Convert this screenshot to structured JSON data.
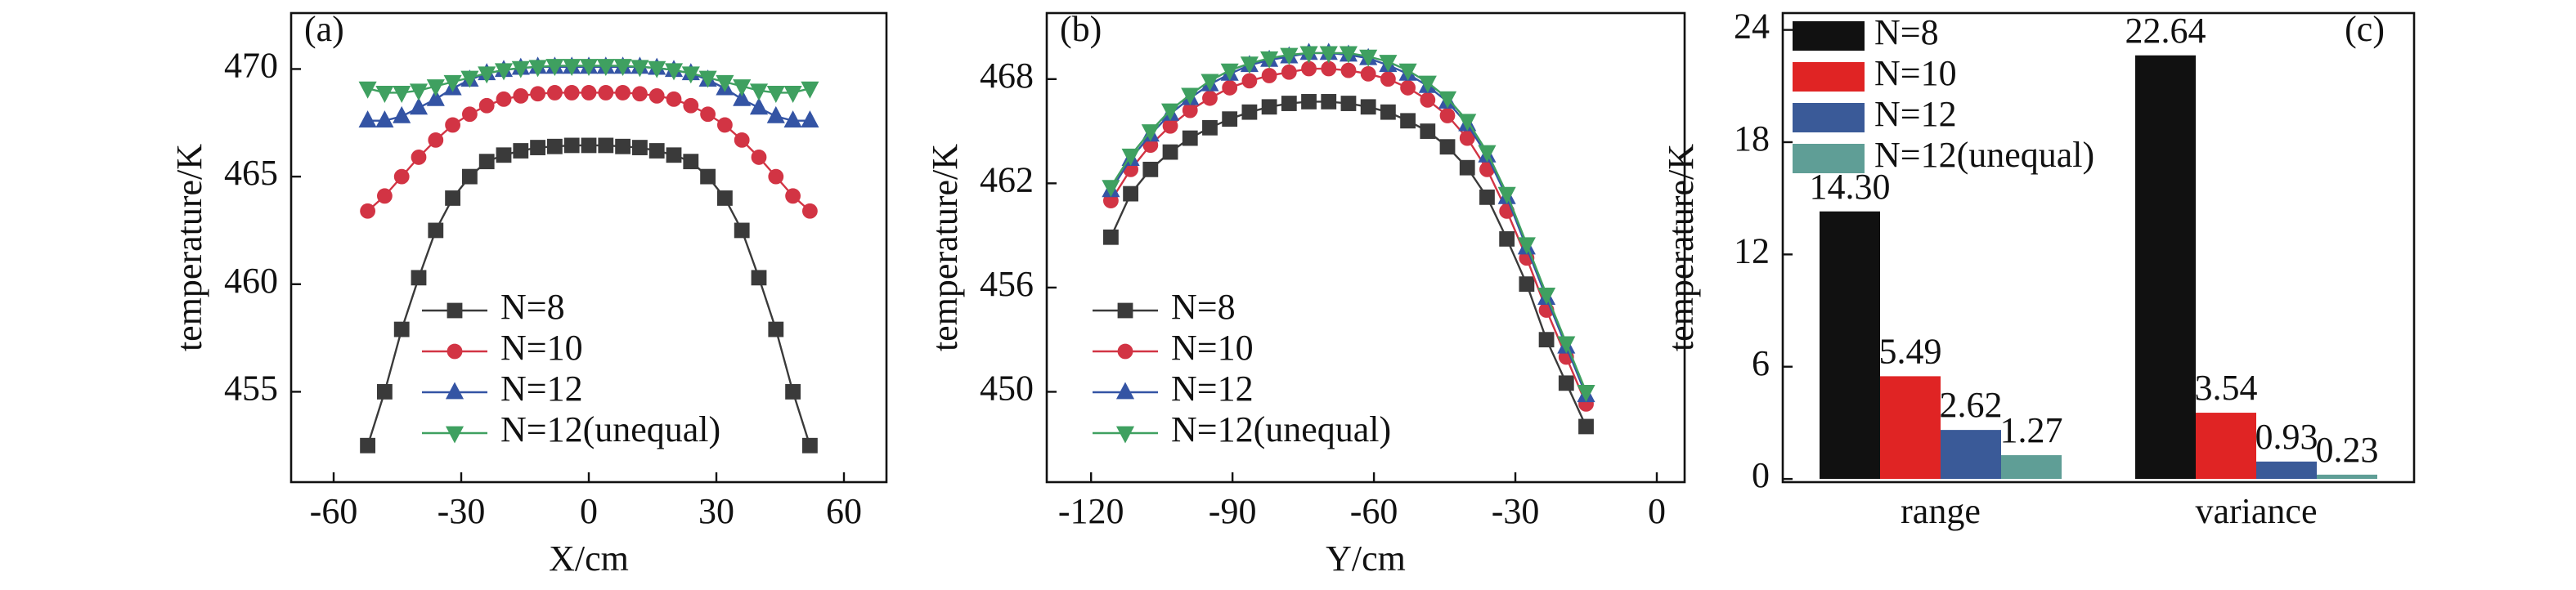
{
  "chart_data": [
    {
      "type": "line",
      "panel_label": "(a)",
      "x_label": "X/cm",
      "y_label": "temperature/K",
      "legend": "lower center",
      "x": [
        -52,
        -48,
        -44,
        -40,
        -36,
        -32,
        -28,
        -24,
        -20,
        -16,
        -12,
        -8,
        -4,
        0,
        4,
        8,
        12,
        16,
        20,
        24,
        28,
        32,
        36,
        40,
        44,
        48,
        52
      ],
      "xlim": [
        -70,
        70
      ],
      "xticks": [
        -60,
        -30,
        0,
        30,
        60
      ],
      "ylim": [
        450.8,
        472.6
      ],
      "yticks": [
        455,
        460,
        465,
        470
      ],
      "series": [
        {
          "name": "N=8",
          "color": "#3a3a3a",
          "marker": "square",
          "values": [
            452.5,
            455,
            457.9,
            460.3,
            462.5,
            464.0,
            465.0,
            465.7,
            466.0,
            466.2,
            466.35,
            466.4,
            466.45,
            466.45,
            466.45,
            466.4,
            466.35,
            466.2,
            466.0,
            465.7,
            465.0,
            464.0,
            462.5,
            460.3,
            457.9,
            455,
            452.5
          ]
        },
        {
          "name": "N=10",
          "color": "#d23444",
          "marker": "circle",
          "values": [
            463.4,
            464.1,
            465.0,
            465.9,
            466.7,
            467.4,
            467.9,
            468.3,
            468.6,
            468.75,
            468.85,
            468.9,
            468.9,
            468.9,
            468.9,
            468.9,
            468.85,
            468.75,
            468.6,
            468.3,
            467.9,
            467.4,
            466.7,
            465.9,
            465.0,
            464.1,
            463.4
          ]
        },
        {
          "name": "N=12",
          "color": "#3454a4",
          "marker": "triangle-up",
          "values": [
            467.6,
            467.6,
            467.8,
            468.2,
            468.6,
            469.1,
            469.5,
            469.8,
            469.95,
            470.05,
            470.1,
            470.1,
            470.1,
            470.1,
            470.1,
            470.1,
            470.1,
            470.05,
            469.95,
            469.8,
            469.5,
            469.1,
            468.6,
            468.2,
            467.8,
            467.6,
            467.6
          ]
        },
        {
          "name": "N=12(unequal)",
          "color": "#3fa060",
          "marker": "triangle-down",
          "values": [
            469.1,
            468.9,
            468.9,
            469.0,
            469.2,
            469.4,
            469.6,
            469.8,
            469.95,
            470.05,
            470.1,
            470.15,
            470.15,
            470.15,
            470.15,
            470.15,
            470.1,
            470.05,
            469.95,
            469.8,
            469.6,
            469.4,
            469.2,
            469.0,
            468.9,
            468.9,
            469.1
          ]
        }
      ]
    },
    {
      "type": "line",
      "panel_label": "(b)",
      "x_label": "Y/cm",
      "y_label": "temperature/K",
      "legend": "lower left",
      "x": [
        -115.8,
        -111.6,
        -107.4,
        -103.2,
        -99,
        -94.8,
        -90.6,
        -86.4,
        -82.2,
        -78,
        -73.8,
        -69.6,
        -65.4,
        -61.2,
        -57,
        -52.8,
        -48.6,
        -44.4,
        -40.2,
        -36,
        -31.8,
        -27.6,
        -23.4,
        -19.2,
        -15
      ],
      "xlim": [
        -129.4,
        5.9
      ],
      "xticks": [
        -120,
        -90,
        -60,
        -30,
        0
      ],
      "ylim": [
        444.8,
        471.8
      ],
      "yticks": [
        450,
        456,
        462,
        468
      ],
      "series": [
        {
          "name": "N=8",
          "color": "#3a3a3a",
          "marker": "square",
          "values": [
            458.9,
            461.4,
            462.8,
            463.8,
            464.6,
            465.2,
            465.7,
            466.1,
            466.4,
            466.6,
            466.7,
            466.7,
            466.6,
            466.4,
            466.1,
            465.6,
            465.0,
            464.1,
            462.9,
            461.2,
            458.8,
            456.2,
            453.0,
            450.5,
            448.0
          ]
        },
        {
          "name": "N=10",
          "color": "#d23444",
          "marker": "circle",
          "values": [
            461.0,
            462.8,
            464.2,
            465.3,
            466.2,
            466.9,
            467.5,
            467.9,
            468.2,
            468.4,
            468.6,
            468.6,
            468.5,
            468.3,
            468.0,
            467.5,
            466.8,
            465.9,
            464.6,
            462.8,
            460.4,
            457.7,
            454.7,
            452.0,
            449.3
          ]
        },
        {
          "name": "N=12",
          "color": "#3454a4",
          "marker": "triangle-up",
          "values": [
            461.6,
            463.4,
            464.8,
            466.0,
            466.9,
            467.7,
            468.3,
            468.8,
            469.1,
            469.3,
            469.5,
            469.5,
            469.4,
            469.2,
            468.8,
            468.3,
            467.6,
            466.7,
            465.4,
            463.6,
            461.2,
            458.3,
            455.4,
            452.6,
            449.8
          ]
        },
        {
          "name": "N=12(unequal)",
          "color": "#3fa060",
          "marker": "triangle-down",
          "values": [
            461.8,
            463.6,
            465.0,
            466.2,
            467.1,
            467.9,
            468.5,
            468.9,
            469.2,
            469.4,
            469.5,
            469.5,
            469.5,
            469.3,
            469.0,
            468.5,
            467.8,
            466.9,
            465.6,
            463.8,
            461.4,
            458.5,
            455.6,
            452.8,
            450.0
          ]
        }
      ]
    },
    {
      "type": "bar",
      "panel_label": "(c)",
      "y_label": "temperature/K",
      "legend": "upper left",
      "categories": [
        "range",
        "variance"
      ],
      "ylim": [
        -0.17,
        24.9
      ],
      "yticks": [
        0,
        6,
        12,
        18,
        24
      ],
      "series": [
        {
          "name": "N=8",
          "color": "#111111",
          "values": [
            14.3,
            22.64
          ],
          "value_labels": [
            "14.30",
            "22.64"
          ]
        },
        {
          "name": "N=10",
          "color": "#e02424",
          "values": [
            5.49,
            3.54
          ],
          "value_labels": [
            "5.49",
            "3.54"
          ]
        },
        {
          "name": "N=12",
          "color": "#3a5a98",
          "values": [
            2.62,
            0.93
          ],
          "value_labels": [
            "2.62",
            "0.93"
          ]
        },
        {
          "name": "N=12(unequal)",
          "color": "#5f9e96",
          "values": [
            1.27,
            0.23
          ],
          "value_labels": [
            "1.27",
            "0.23"
          ]
        }
      ]
    }
  ]
}
